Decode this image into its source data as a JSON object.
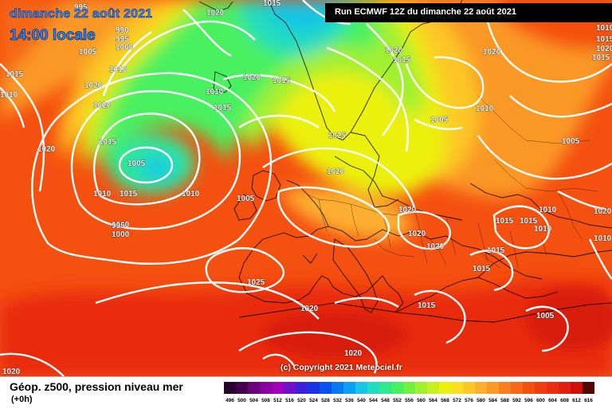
{
  "title": {
    "date": "dimanche 22 août 2021",
    "time": "14:00 locale"
  },
  "run_info": "Run ECMWF 12Z du dimanche 22 août 2021",
  "copyright": "(c) Copyright 2021 Meteociel.fr",
  "legend": {
    "title": "Géop. z500, pression niveau mer",
    "subtitle": "(+0h)",
    "scale_values": [
      "496",
      "500",
      "504",
      "508",
      "512",
      "516",
      "520",
      "524",
      "528",
      "532",
      "536",
      "540",
      "544",
      "548",
      "552",
      "556",
      "560",
      "564",
      "568",
      "572",
      "576",
      "580",
      "584",
      "588",
      "592",
      "596",
      "600",
      "604",
      "608",
      "612",
      "616"
    ],
    "scale_colors": [
      "#2a0030",
      "#44004e",
      "#6a007a",
      "#8a009c",
      "#a000b8",
      "#7010c8",
      "#3c20d8",
      "#1a32e4",
      "#0a50f0",
      "#0a78f4",
      "#0aa0f4",
      "#18c4e8",
      "#20dcc0",
      "#30e890",
      "#48f060",
      "#70f040",
      "#a0f030",
      "#c8f020",
      "#ecf010",
      "#fae020",
      "#fcc828",
      "#fcb030",
      "#fa9828",
      "#f88020",
      "#f66818",
      "#f45010",
      "#f03c10",
      "#ec2c10",
      "#e02010",
      "#d01008",
      "#500800"
    ]
  },
  "isobar_labels": [
    "995",
    "1020",
    "1015",
    "990",
    "995",
    "1000",
    "1005",
    "1010",
    "1010",
    "1015",
    "1020",
    "1020",
    "1010",
    "1015",
    "1020",
    "1015",
    "1015",
    "1020",
    "1005",
    "1010",
    "1015",
    "1010",
    "1005",
    "1025",
    "1015",
    "1020",
    "1020",
    "1000",
    "1010",
    "1005",
    "1000",
    "1020",
    "1020",
    "1015",
    "1015",
    "1010",
    "995",
    "1000",
    "1020",
    "1020",
    "1015",
    "1005",
    "1015",
    "1025",
    "1015",
    "1020",
    "1005",
    "1020",
    "1010",
    "1015",
    "1020",
    "1015",
    "1010",
    "1010",
    "1020",
    "1020"
  ]
}
